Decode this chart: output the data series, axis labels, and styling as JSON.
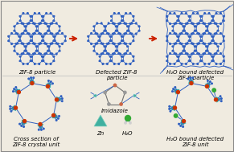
{
  "background_color": "#f0ebe0",
  "arrow_color": "#cc2200",
  "blue": "#3060c0",
  "teal": "#40b0a0",
  "red_node": "#cc3300",
  "green_node": "#33aa33",
  "gray_node": "#888888",
  "white_node": "#e8e8ff",
  "label_fontsize": 5.0,
  "figsize": [
    2.91,
    1.89
  ],
  "dpi": 100,
  "top_labels": [
    "ZIF-8 particle",
    "Defected ZIF-8\nparticle",
    "H₂O bound defected\nZIF-8 particle"
  ],
  "bottom_labels": [
    "Cross section of\nZIF-8 crystal unit",
    "Imidazole",
    "Zn",
    "H₂O",
    "H₂O bound defected\nZIF-8 unit"
  ]
}
